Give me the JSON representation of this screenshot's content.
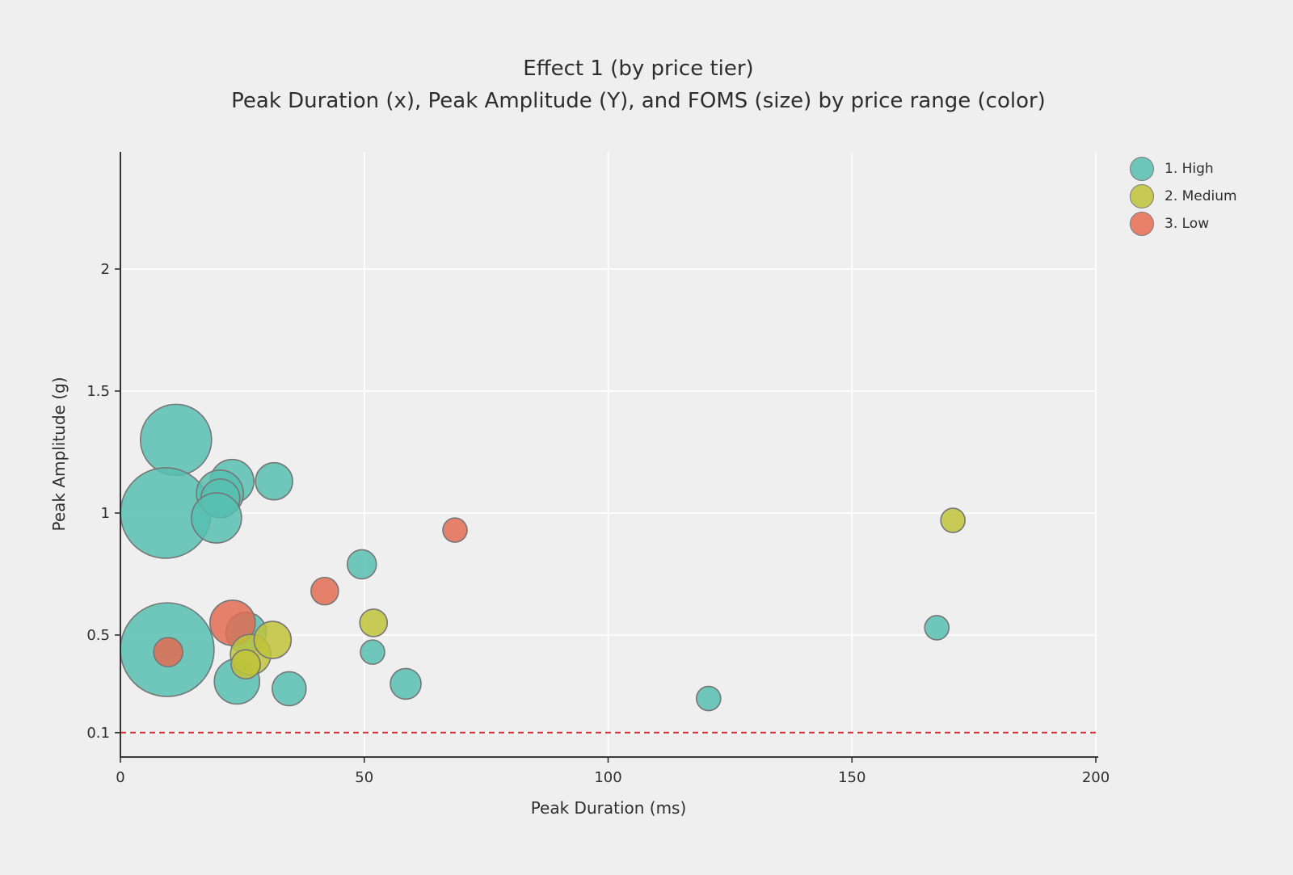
{
  "figure": {
    "title": "Effect 1 (by price tier)",
    "subtitle": "Peak Duration (x), Peak Amplitude (Y), and FOMS (size) by price range (color)"
  },
  "legend": {
    "position": "top-right",
    "items": [
      {
        "label": "1. High",
        "color": "#6ec6ba"
      },
      {
        "label": "2. Medium",
        "color": "#c6ca55"
      },
      {
        "label": "3. Low",
        "color": "#e8806a"
      }
    ]
  },
  "chart_data": {
    "type": "scatter",
    "subtype": "bubble",
    "title": "Effect 1 (by price tier)",
    "subtitle": "Peak Duration (x), Peak Amplitude (Y), and FOMS (size) by price range (color)",
    "xlabel": "Peak Duration (ms)",
    "ylabel": "Peak Amplitude (g)",
    "xlim": [
      0,
      200
    ],
    "ylim": [
      0,
      2.48
    ],
    "x_ticks": [
      0,
      50,
      100,
      150,
      200
    ],
    "y_ticks": [
      0.1,
      0.5,
      1,
      1.5,
      2
    ],
    "grid": true,
    "background_color": "#efefef",
    "gridline_color": "#ffffff",
    "marker_stroke_color": "#767676",
    "marker_opacity": 0.85,
    "reference_line": {
      "y": 0.1,
      "color": "#e23333",
      "style": "dashed"
    },
    "size_variable": "FOMS",
    "color_variable": "price range",
    "series": [
      {
        "name": "1. High",
        "color": "#57bfb0",
        "points": [
          {
            "x": 11.4,
            "y": 1.3,
            "r": 44
          },
          {
            "x": 9.3,
            "y": 1.0,
            "r": 56
          },
          {
            "x": 22.9,
            "y": 1.13,
            "r": 27
          },
          {
            "x": 20.4,
            "y": 1.08,
            "r": 29
          },
          {
            "x": 20.5,
            "y": 1.06,
            "r": 24
          },
          {
            "x": 19.7,
            "y": 0.98,
            "r": 31
          },
          {
            "x": 31.5,
            "y": 1.13,
            "r": 23
          },
          {
            "x": 9.6,
            "y": 0.44,
            "r": 58
          },
          {
            "x": 25.8,
            "y": 0.51,
            "r": 25
          },
          {
            "x": 23.9,
            "y": 0.31,
            "r": 28
          },
          {
            "x": 34.6,
            "y": 0.28,
            "r": 21
          },
          {
            "x": 49.5,
            "y": 0.79,
            "r": 18
          },
          {
            "x": 51.7,
            "y": 0.43,
            "r": 15
          },
          {
            "x": 58.5,
            "y": 0.3,
            "r": 19
          },
          {
            "x": 120.6,
            "y": 0.24,
            "r": 15
          },
          {
            "x": 167.4,
            "y": 0.53,
            "r": 15
          }
        ]
      },
      {
        "name": "3. Low",
        "color": "#e36c52",
        "points": [
          {
            "x": 9.8,
            "y": 0.43,
            "r": 18
          },
          {
            "x": 23.0,
            "y": 0.55,
            "r": 28
          },
          {
            "x": 41.9,
            "y": 0.68,
            "r": 17
          },
          {
            "x": 68.6,
            "y": 0.93,
            "r": 15
          }
        ]
      },
      {
        "name": "2. Medium",
        "color": "#bfc33a",
        "points": [
          {
            "x": 26.7,
            "y": 0.42,
            "r": 25
          },
          {
            "x": 31.2,
            "y": 0.48,
            "r": 23
          },
          {
            "x": 25.7,
            "y": 0.38,
            "r": 18
          },
          {
            "x": 51.9,
            "y": 0.55,
            "r": 17
          },
          {
            "x": 170.7,
            "y": 0.97,
            "r": 15
          }
        ]
      }
    ]
  }
}
